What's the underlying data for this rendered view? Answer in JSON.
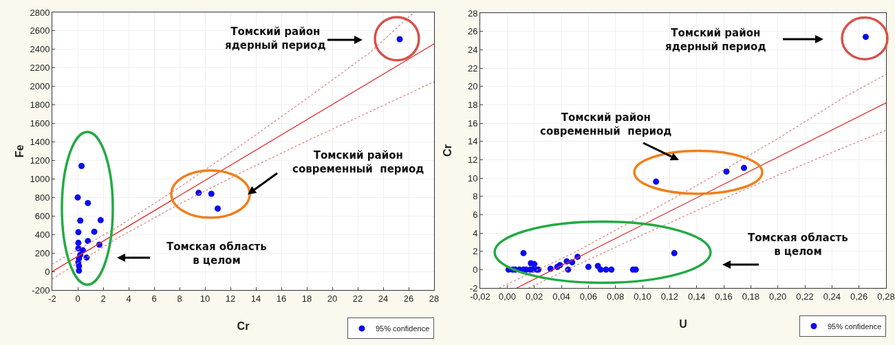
{
  "chart_data": [
    {
      "type": "scatter",
      "xlabel": "Cr",
      "ylabel": "Fe",
      "xlim": [
        -2,
        28
      ],
      "ylim": [
        -200,
        2800
      ],
      "xticks": [
        -2,
        0,
        2,
        4,
        6,
        8,
        10,
        12,
        14,
        16,
        18,
        20,
        22,
        24,
        26,
        28
      ],
      "yticks": [
        -200,
        0,
        200,
        400,
        600,
        800,
        1000,
        1200,
        1400,
        1600,
        1800,
        2000,
        2200,
        2400,
        2600,
        2800
      ],
      "grid": true,
      "legend": "bottom right",
      "marker": "circle",
      "series": [
        {
          "name": "95% confidence",
          "color": "#0a0af0",
          "x": [
            0.3,
            0,
            0.8,
            0.2,
            1.8,
            0.05,
            1.3,
            0.8,
            1.7,
            0.05,
            0.05,
            0.4,
            0.2,
            0.7,
            0.1,
            0.05,
            0.1,
            0.1,
            9.5,
            10.5,
            11,
            25.3
          ],
          "values": [
            1140,
            800,
            740,
            550,
            555,
            425,
            430,
            330,
            290,
            310,
            250,
            230,
            180,
            150,
            140,
            100,
            60,
            10,
            850,
            840,
            680,
            2510
          ]
        },
        {
          "type": "line",
          "color": "#e03030",
          "line_style": "solid",
          "marker": "none",
          "x": [
            -2,
            28
          ],
          "values": [
            0,
            2460
          ]
        },
        {
          "type": "line",
          "color": "#e88080",
          "line_style": "dotted",
          "marker": "none",
          "x": [
            -2,
            3,
            8,
            13,
            18,
            23,
            26.4
          ],
          "values": [
            80,
            470,
            910,
            1380,
            1870,
            2370,
            2800
          ]
        },
        {
          "type": "line",
          "color": "#e88080",
          "line_style": "dotted",
          "marker": "none",
          "x": [
            -2,
            3,
            8,
            13,
            18,
            23,
            28
          ],
          "values": [
            -80,
            350,
            730,
            1080,
            1410,
            1730,
            2050
          ]
        }
      ],
      "annotations": [
        "Томский район\nядерный период",
        "Томский район\nсовременный  период",
        "Томская область\nв целом"
      ]
    },
    {
      "type": "scatter",
      "xlabel": "U",
      "ylabel": "Cr",
      "xlim": [
        -0.02,
        0.28
      ],
      "ylim": [
        -2,
        28
      ],
      "xticks": [
        {
          "value": -0.02,
          "label": "-0,02"
        },
        {
          "value": 0,
          "label": "0,00"
        },
        {
          "value": 0.02,
          "label": "0,02"
        },
        {
          "value": 0.04,
          "label": "0,04"
        },
        {
          "value": 0.06,
          "label": "0,06"
        },
        {
          "value": 0.08,
          "label": "0,08"
        },
        {
          "value": 0.1,
          "label": "0,10"
        },
        {
          "value": 0.12,
          "label": "0,12"
        },
        {
          "value": 0.14,
          "label": "0,14"
        },
        {
          "value": 0.16,
          "label": "0,16"
        },
        {
          "value": 0.18,
          "label": "0,18"
        },
        {
          "value": 0.2,
          "label": "0,20"
        },
        {
          "value": 0.22,
          "label": "0,22"
        },
        {
          "value": 0.24,
          "label": "0,24"
        },
        {
          "value": 0.26,
          "label": "0,26"
        },
        {
          "value": 0.28,
          "label": "0,28"
        }
      ],
      "yticks": [
        -2,
        0,
        2,
        4,
        6,
        8,
        10,
        12,
        14,
        16,
        18,
        20,
        22,
        24,
        26,
        28
      ],
      "grid": true,
      "legend": "bottom right",
      "marker": "circle",
      "series": [
        {
          "name": "95% confidence",
          "color": "#0a0af0",
          "x": [
            0.001,
            0.004,
            0.006,
            0.009,
            0.012,
            0.014,
            0.017,
            0.019,
            0.022,
            0.023,
            0.012,
            0.0175,
            0.02,
            0.032,
            0.037,
            0.039,
            0.044,
            0.045,
            0.048,
            0.052,
            0.06,
            0.067,
            0.069,
            0.073,
            0.077,
            0.093,
            0.095,
            0.1235,
            0.11,
            0.162,
            0.175,
            0.265
          ],
          "values": [
            0,
            0,
            0,
            0,
            0,
            0,
            0,
            0,
            0,
            0,
            1.8,
            0.7,
            0.6,
            0.1,
            0.3,
            0.5,
            0.9,
            0,
            0.8,
            1.4,
            0.3,
            0.4,
            0,
            0,
            0,
            0,
            0,
            1.8,
            9.6,
            10.7,
            11.1,
            25.4
          ]
        },
        {
          "type": "line",
          "color": "#e03030",
          "line_style": "solid",
          "marker": "none",
          "x": [
            0.007,
            0.28
          ],
          "values": [
            -2,
            18.2
          ]
        },
        {
          "type": "line",
          "color": "#e88080",
          "line_style": "dotted",
          "marker": "none",
          "x": [
            -0.006,
            0.05,
            0.1,
            0.15,
            0.2,
            0.25,
            0.28
          ],
          "values": [
            -2,
            1.9,
            5.9,
            10,
            14.3,
            18.9,
            21.3
          ]
        },
        {
          "type": "line",
          "color": "#e88080",
          "line_style": "dotted",
          "marker": "none",
          "x": [
            0.016,
            0.05,
            0.1,
            0.15,
            0.2,
            0.25,
            0.28
          ],
          "values": [
            -2,
            0.4,
            3.8,
            7.1,
            10.3,
            13.4,
            15.2
          ]
        }
      ],
      "annotations": [
        "Томский район\nядерный период",
        "Томский район\nсовременный  период",
        "Томская область\nв целом"
      ]
    }
  ]
}
